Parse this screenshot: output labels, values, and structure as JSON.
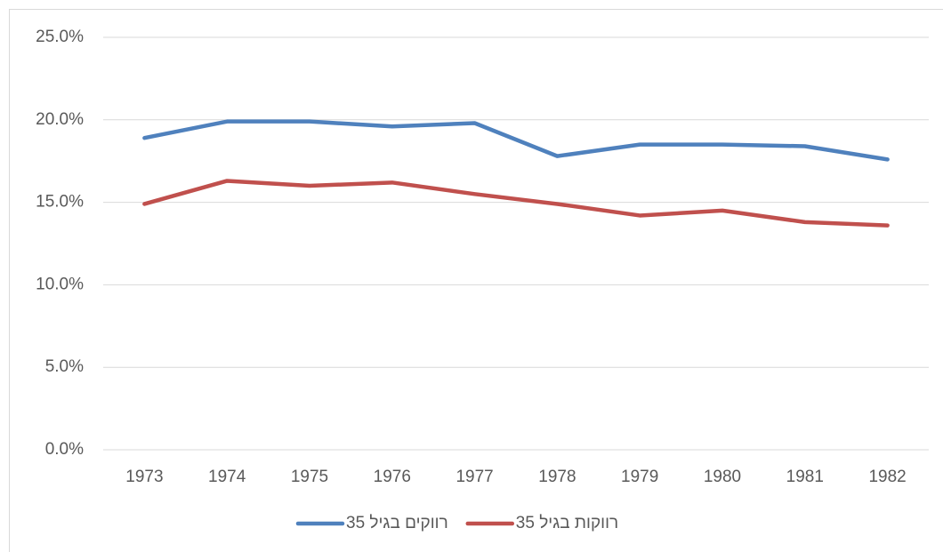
{
  "chart_data": {
    "type": "line",
    "categories": [
      "1973",
      "1974",
      "1975",
      "1976",
      "1977",
      "1978",
      "1979",
      "1980",
      "1981",
      "1982"
    ],
    "series": [
      {
        "name": "רווקים בגיל 35",
        "color": "#4f81bd",
        "values": [
          18.9,
          19.9,
          19.9,
          19.6,
          19.8,
          17.8,
          18.5,
          18.5,
          18.4,
          17.6
        ]
      },
      {
        "name": "רווקות בגיל 35",
        "color": "#c0504d",
        "values": [
          14.9,
          16.3,
          16.0,
          16.2,
          15.5,
          14.9,
          14.2,
          14.5,
          13.8,
          13.6
        ]
      }
    ],
    "ylim": [
      0,
      25
    ],
    "yticks": [
      {
        "value": 0,
        "label": "0.0%"
      },
      {
        "value": 5,
        "label": "5.0%"
      },
      {
        "value": 10,
        "label": "10.0%"
      },
      {
        "value": 15,
        "label": "15.0%"
      },
      {
        "value": 20,
        "label": "20.0%"
      },
      {
        "value": 25,
        "label": "25.0%"
      }
    ],
    "grid": true,
    "legend": "bottom"
  }
}
